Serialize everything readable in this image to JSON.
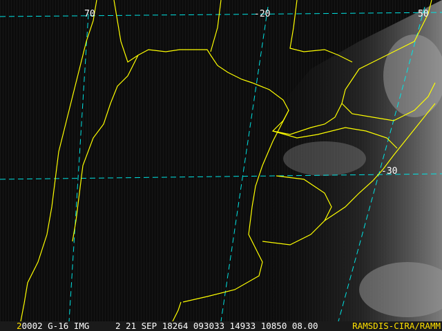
{
  "image": {
    "type": "satellite infrared/visible imagery with map overlay",
    "colors": {
      "borders": "#ffff00",
      "grid": "#00e5e5",
      "background": "#0b0b0b",
      "clouds": "#c8c8c8"
    }
  },
  "grid_labels": {
    "lon_70": "70",
    "lat_20": "-20",
    "lon_50": "50",
    "lat_30": "-30"
  },
  "status_bar": {
    "band": "2",
    "info": "0002 G-16 IMG     2 21 SEP 18264 093033 14933 10850 08.00",
    "credit": "RAMSDIS-CIRA/RAMM"
  }
}
